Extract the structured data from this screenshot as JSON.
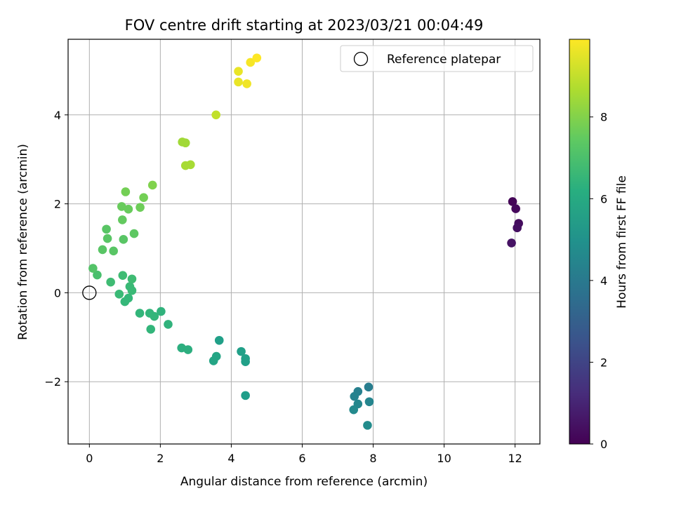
{
  "chart_data": {
    "type": "scatter",
    "title": "FOV centre drift starting at 2023/03/21 00:04:49",
    "xlabel": "Angular distance from reference (arcmin)",
    "ylabel": "Rotation from reference (arcmin)",
    "xlim": [
      -0.6,
      12.7
    ],
    "ylim": [
      -3.4,
      5.7
    ],
    "xticks": [
      0,
      2,
      4,
      6,
      8,
      10,
      12
    ],
    "yticks": [
      -2,
      0,
      2,
      4
    ],
    "grid": true,
    "legend": {
      "placement": "top-right",
      "entries": [
        {
          "label": "Reference platepar",
          "marker": "open-circle"
        }
      ]
    },
    "reference_point": {
      "x": 0,
      "y": 0
    },
    "colorbar": {
      "label": "Hours from first FF file",
      "range": [
        0,
        9.9
      ],
      "ticks": [
        0,
        2,
        4,
        6,
        8
      ],
      "colormap": "viridis"
    },
    "points": [
      {
        "x": 11.93,
        "y": 2.05,
        "c": 0.1
      },
      {
        "x": 12.02,
        "y": 1.89,
        "c": 0.2
      },
      {
        "x": 12.1,
        "y": 1.56,
        "c": 0.3
      },
      {
        "x": 12.06,
        "y": 1.46,
        "c": 0.4
      },
      {
        "x": 11.9,
        "y": 1.12,
        "c": 0.5
      },
      {
        "x": 7.87,
        "y": -2.12,
        "c": 4.2
      },
      {
        "x": 7.57,
        "y": -2.22,
        "c": 4.3
      },
      {
        "x": 7.47,
        "y": -2.33,
        "c": 4.4
      },
      {
        "x": 7.89,
        "y": -2.45,
        "c": 4.5
      },
      {
        "x": 7.57,
        "y": -2.5,
        "c": 4.6
      },
      {
        "x": 7.45,
        "y": -2.63,
        "c": 4.7
      },
      {
        "x": 7.84,
        "y": -2.98,
        "c": 4.8
      },
      {
        "x": 4.4,
        "y": -2.31,
        "c": 5.5
      },
      {
        "x": 3.66,
        "y": -1.07,
        "c": 5.6
      },
      {
        "x": 4.28,
        "y": -1.32,
        "c": 5.6
      },
      {
        "x": 4.4,
        "y": -1.48,
        "c": 5.6
      },
      {
        "x": 4.4,
        "y": -1.55,
        "c": 5.6
      },
      {
        "x": 3.58,
        "y": -1.43,
        "c": 5.8
      },
      {
        "x": 3.5,
        "y": -1.53,
        "c": 5.8
      },
      {
        "x": 2.6,
        "y": -1.24,
        "c": 6.2
      },
      {
        "x": 2.78,
        "y": -1.28,
        "c": 6.2
      },
      {
        "x": 2.22,
        "y": -0.71,
        "c": 6.4
      },
      {
        "x": 2.02,
        "y": -0.42,
        "c": 6.4
      },
      {
        "x": 1.83,
        "y": -0.53,
        "c": 6.5
      },
      {
        "x": 1.7,
        "y": -0.46,
        "c": 6.5
      },
      {
        "x": 1.42,
        "y": -0.46,
        "c": 6.5
      },
      {
        "x": 1.73,
        "y": -0.82,
        "c": 6.5
      },
      {
        "x": 1.1,
        "y": -0.12,
        "c": 6.6
      },
      {
        "x": 1.0,
        "y": -0.2,
        "c": 6.6
      },
      {
        "x": 0.84,
        "y": -0.03,
        "c": 6.7
      },
      {
        "x": 1.2,
        "y": 0.05,
        "c": 6.7
      },
      {
        "x": 1.14,
        "y": 0.14,
        "c": 6.7
      },
      {
        "x": 1.2,
        "y": 0.31,
        "c": 6.8
      },
      {
        "x": 0.94,
        "y": 0.39,
        "c": 6.8
      },
      {
        "x": 0.6,
        "y": 0.24,
        "c": 6.8
      },
      {
        "x": 0.22,
        "y": 0.4,
        "c": 7.0
      },
      {
        "x": 0.1,
        "y": 0.55,
        "c": 7.2
      },
      {
        "x": 0.37,
        "y": 0.97,
        "c": 7.3
      },
      {
        "x": 0.68,
        "y": 0.94,
        "c": 7.3
      },
      {
        "x": 0.96,
        "y": 1.2,
        "c": 7.3
      },
      {
        "x": 0.51,
        "y": 1.22,
        "c": 7.3
      },
      {
        "x": 0.48,
        "y": 1.43,
        "c": 7.3
      },
      {
        "x": 1.26,
        "y": 1.33,
        "c": 7.4
      },
      {
        "x": 0.93,
        "y": 1.64,
        "c": 7.5
      },
      {
        "x": 0.91,
        "y": 1.94,
        "c": 7.6
      },
      {
        "x": 1.1,
        "y": 1.88,
        "c": 7.6
      },
      {
        "x": 1.43,
        "y": 1.92,
        "c": 7.7
      },
      {
        "x": 1.53,
        "y": 2.14,
        "c": 7.8
      },
      {
        "x": 1.02,
        "y": 2.27,
        "c": 7.8
      },
      {
        "x": 1.78,
        "y": 2.42,
        "c": 8.0
      },
      {
        "x": 2.62,
        "y": 3.39,
        "c": 8.5
      },
      {
        "x": 2.71,
        "y": 3.37,
        "c": 8.5
      },
      {
        "x": 2.71,
        "y": 2.86,
        "c": 8.6
      },
      {
        "x": 2.85,
        "y": 2.88,
        "c": 8.6
      },
      {
        "x": 3.57,
        "y": 4.0,
        "c": 9.0
      },
      {
        "x": 4.2,
        "y": 4.98,
        "c": 9.6
      },
      {
        "x": 4.2,
        "y": 4.74,
        "c": 9.6
      },
      {
        "x": 4.44,
        "y": 4.7,
        "c": 9.7
      },
      {
        "x": 4.54,
        "y": 5.18,
        "c": 9.8
      },
      {
        "x": 4.72,
        "y": 5.28,
        "c": 9.9
      }
    ]
  }
}
